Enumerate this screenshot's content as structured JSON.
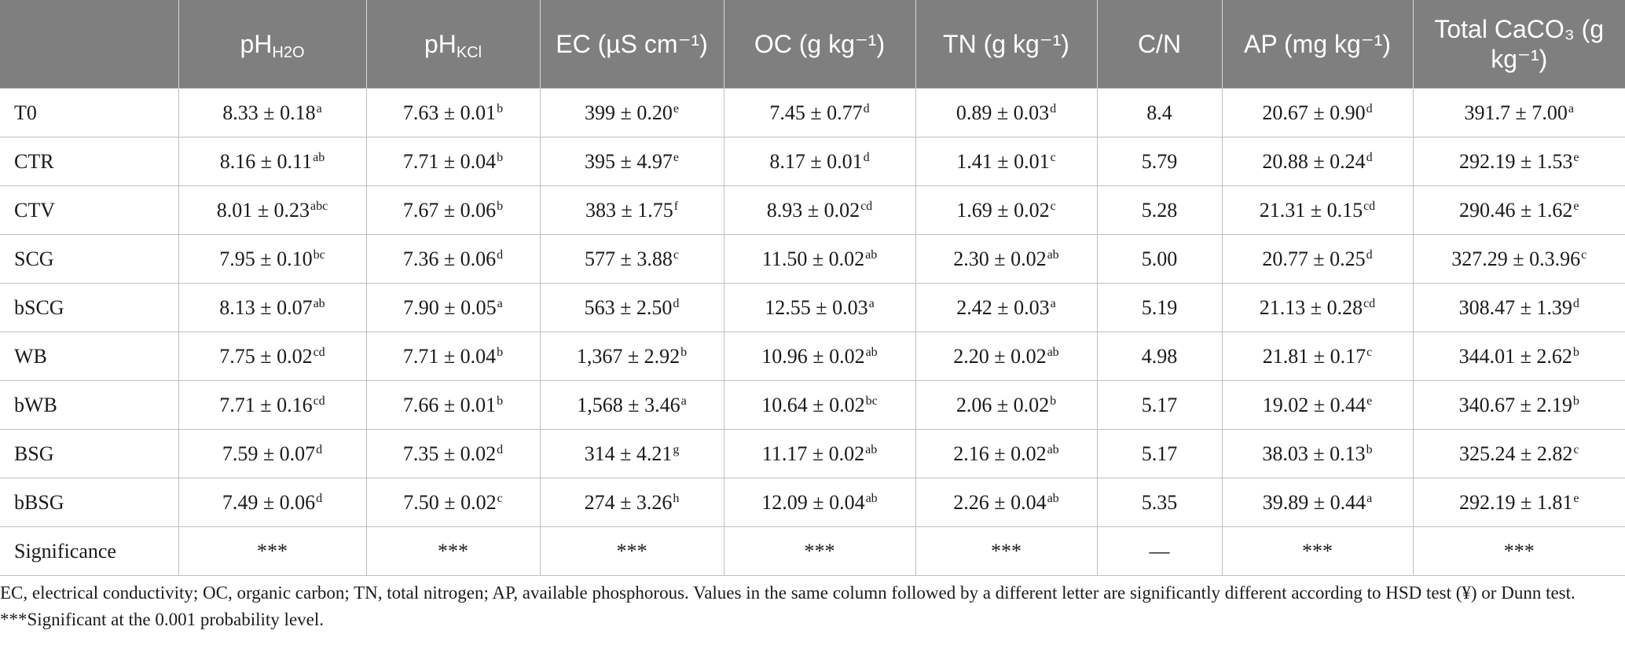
{
  "table": {
    "headers": [
      {
        "text": "",
        "sub": ""
      },
      {
        "text": "pH",
        "sub": "H2O"
      },
      {
        "text": "pH",
        "sub": "KCl"
      },
      {
        "text": "EC (µS cm⁻¹)",
        "sub": ""
      },
      {
        "text": "OC (g kg⁻¹)",
        "sub": ""
      },
      {
        "text": "TN (g kg⁻¹)",
        "sub": ""
      },
      {
        "text": "C/N",
        "sub": ""
      },
      {
        "text": "AP (mg kg⁻¹)",
        "sub": ""
      },
      {
        "text": "Total CaCO₃ (g kg⁻¹)",
        "sub": ""
      }
    ],
    "rows": [
      {
        "label": "T0",
        "cells": [
          [
            "8.33 ± 0.18",
            "a"
          ],
          [
            "7.63 ± 0.01",
            "b"
          ],
          [
            "399 ± 0.20",
            "e"
          ],
          [
            "7.45 ± 0.77",
            "d"
          ],
          [
            "0.89 ± 0.03",
            "d"
          ],
          [
            "8.4",
            ""
          ],
          [
            "20.67 ± 0.90",
            "d"
          ],
          [
            "391.7 ± 7.00",
            "a"
          ]
        ]
      },
      {
        "label": "CTR",
        "cells": [
          [
            "8.16 ± 0.11",
            "ab"
          ],
          [
            "7.71 ± 0.04",
            "b"
          ],
          [
            "395 ± 4.97",
            "e"
          ],
          [
            "8.17 ± 0.01",
            "d"
          ],
          [
            "1.41 ± 0.01",
            "c"
          ],
          [
            "5.79",
            ""
          ],
          [
            "20.88 ± 0.24",
            "d"
          ],
          [
            "292.19 ± 1.53",
            "e"
          ]
        ]
      },
      {
        "label": "CTV",
        "cells": [
          [
            "8.01 ± 0.23",
            "abc"
          ],
          [
            "7.67 ± 0.06",
            "b"
          ],
          [
            "383 ± 1.75",
            "f"
          ],
          [
            "8.93 ± 0.02",
            "cd"
          ],
          [
            "1.69 ± 0.02",
            "c"
          ],
          [
            "5.28",
            ""
          ],
          [
            "21.31 ± 0.15",
            "cd"
          ],
          [
            "290.46 ± 1.62",
            "e"
          ]
        ]
      },
      {
        "label": "SCG",
        "cells": [
          [
            "7.95 ± 0.10",
            "bc"
          ],
          [
            "7.36 ± 0.06",
            "d"
          ],
          [
            "577 ± 3.88",
            "c"
          ],
          [
            "11.50 ± 0.02",
            "ab"
          ],
          [
            "2.30 ± 0.02",
            "ab"
          ],
          [
            "5.00",
            ""
          ],
          [
            "20.77 ± 0.25",
            "d"
          ],
          [
            "327.29 ± 0.3.96",
            "c"
          ]
        ]
      },
      {
        "label": "bSCG",
        "cells": [
          [
            "8.13 ± 0.07",
            "ab"
          ],
          [
            "7.90 ± 0.05",
            "a"
          ],
          [
            "563 ± 2.50",
            "d"
          ],
          [
            "12.55 ± 0.03",
            "a"
          ],
          [
            "2.42 ± 0.03",
            "a"
          ],
          [
            "5.19",
            ""
          ],
          [
            "21.13 ± 0.28",
            "cd"
          ],
          [
            "308.47 ± 1.39",
            "d"
          ]
        ]
      },
      {
        "label": "WB",
        "cells": [
          [
            "7.75 ± 0.02",
            "cd"
          ],
          [
            "7.71 ± 0.04",
            "b"
          ],
          [
            "1,367 ± 2.92",
            "b"
          ],
          [
            "10.96 ± 0.02",
            "ab"
          ],
          [
            "2.20 ± 0.02",
            "ab"
          ],
          [
            "4.98",
            ""
          ],
          [
            "21.81 ± 0.17",
            "c"
          ],
          [
            "344.01 ± 2.62",
            "b"
          ]
        ]
      },
      {
        "label": "bWB",
        "cells": [
          [
            "7.71 ± 0.16",
            "cd"
          ],
          [
            "7.66 ± 0.01",
            "b"
          ],
          [
            "1,568 ± 3.46",
            "a"
          ],
          [
            "10.64 ± 0.02",
            "bc"
          ],
          [
            "2.06 ± 0.02",
            "b"
          ],
          [
            "5.17",
            ""
          ],
          [
            "19.02 ± 0.44",
            "e"
          ],
          [
            "340.67 ± 2.19",
            "b"
          ]
        ]
      },
      {
        "label": "BSG",
        "cells": [
          [
            "7.59 ± 0.07",
            "d"
          ],
          [
            "7.35 ± 0.02",
            "d"
          ],
          [
            "314 ± 4.21",
            "g"
          ],
          [
            "11.17 ± 0.02",
            "ab"
          ],
          [
            "2.16 ± 0.02",
            "ab"
          ],
          [
            "5.17",
            ""
          ],
          [
            "38.03 ± 0.13",
            "b"
          ],
          [
            "325.24 ± 2.82",
            "c"
          ]
        ]
      },
      {
        "label": "bBSG",
        "cells": [
          [
            "7.49 ± 0.06",
            "d"
          ],
          [
            "7.50 ± 0.02",
            "c"
          ],
          [
            "274 ± 3.26",
            "h"
          ],
          [
            "12.09 ± 0.04",
            "ab"
          ],
          [
            "2.26 ± 0.04",
            "ab"
          ],
          [
            "5.35",
            ""
          ],
          [
            "39.89 ± 0.44",
            "a"
          ],
          [
            "292.19 ± 1.81",
            "e"
          ]
        ]
      },
      {
        "label": "Significance",
        "cells": [
          [
            "***",
            ""
          ],
          [
            "***",
            ""
          ],
          [
            "***",
            ""
          ],
          [
            "***",
            ""
          ],
          [
            "***",
            ""
          ],
          [
            "—",
            ""
          ],
          [
            "***",
            ""
          ],
          [
            "***",
            ""
          ]
        ]
      }
    ]
  },
  "footnote": "EC, electrical conductivity; OC, organic carbon; TN, total nitrogen; AP, available phosphorous. Values in the same column followed by a different letter are significantly different according to HSD test (¥) or Dunn test. ***Significant at the 0.001 probability level."
}
